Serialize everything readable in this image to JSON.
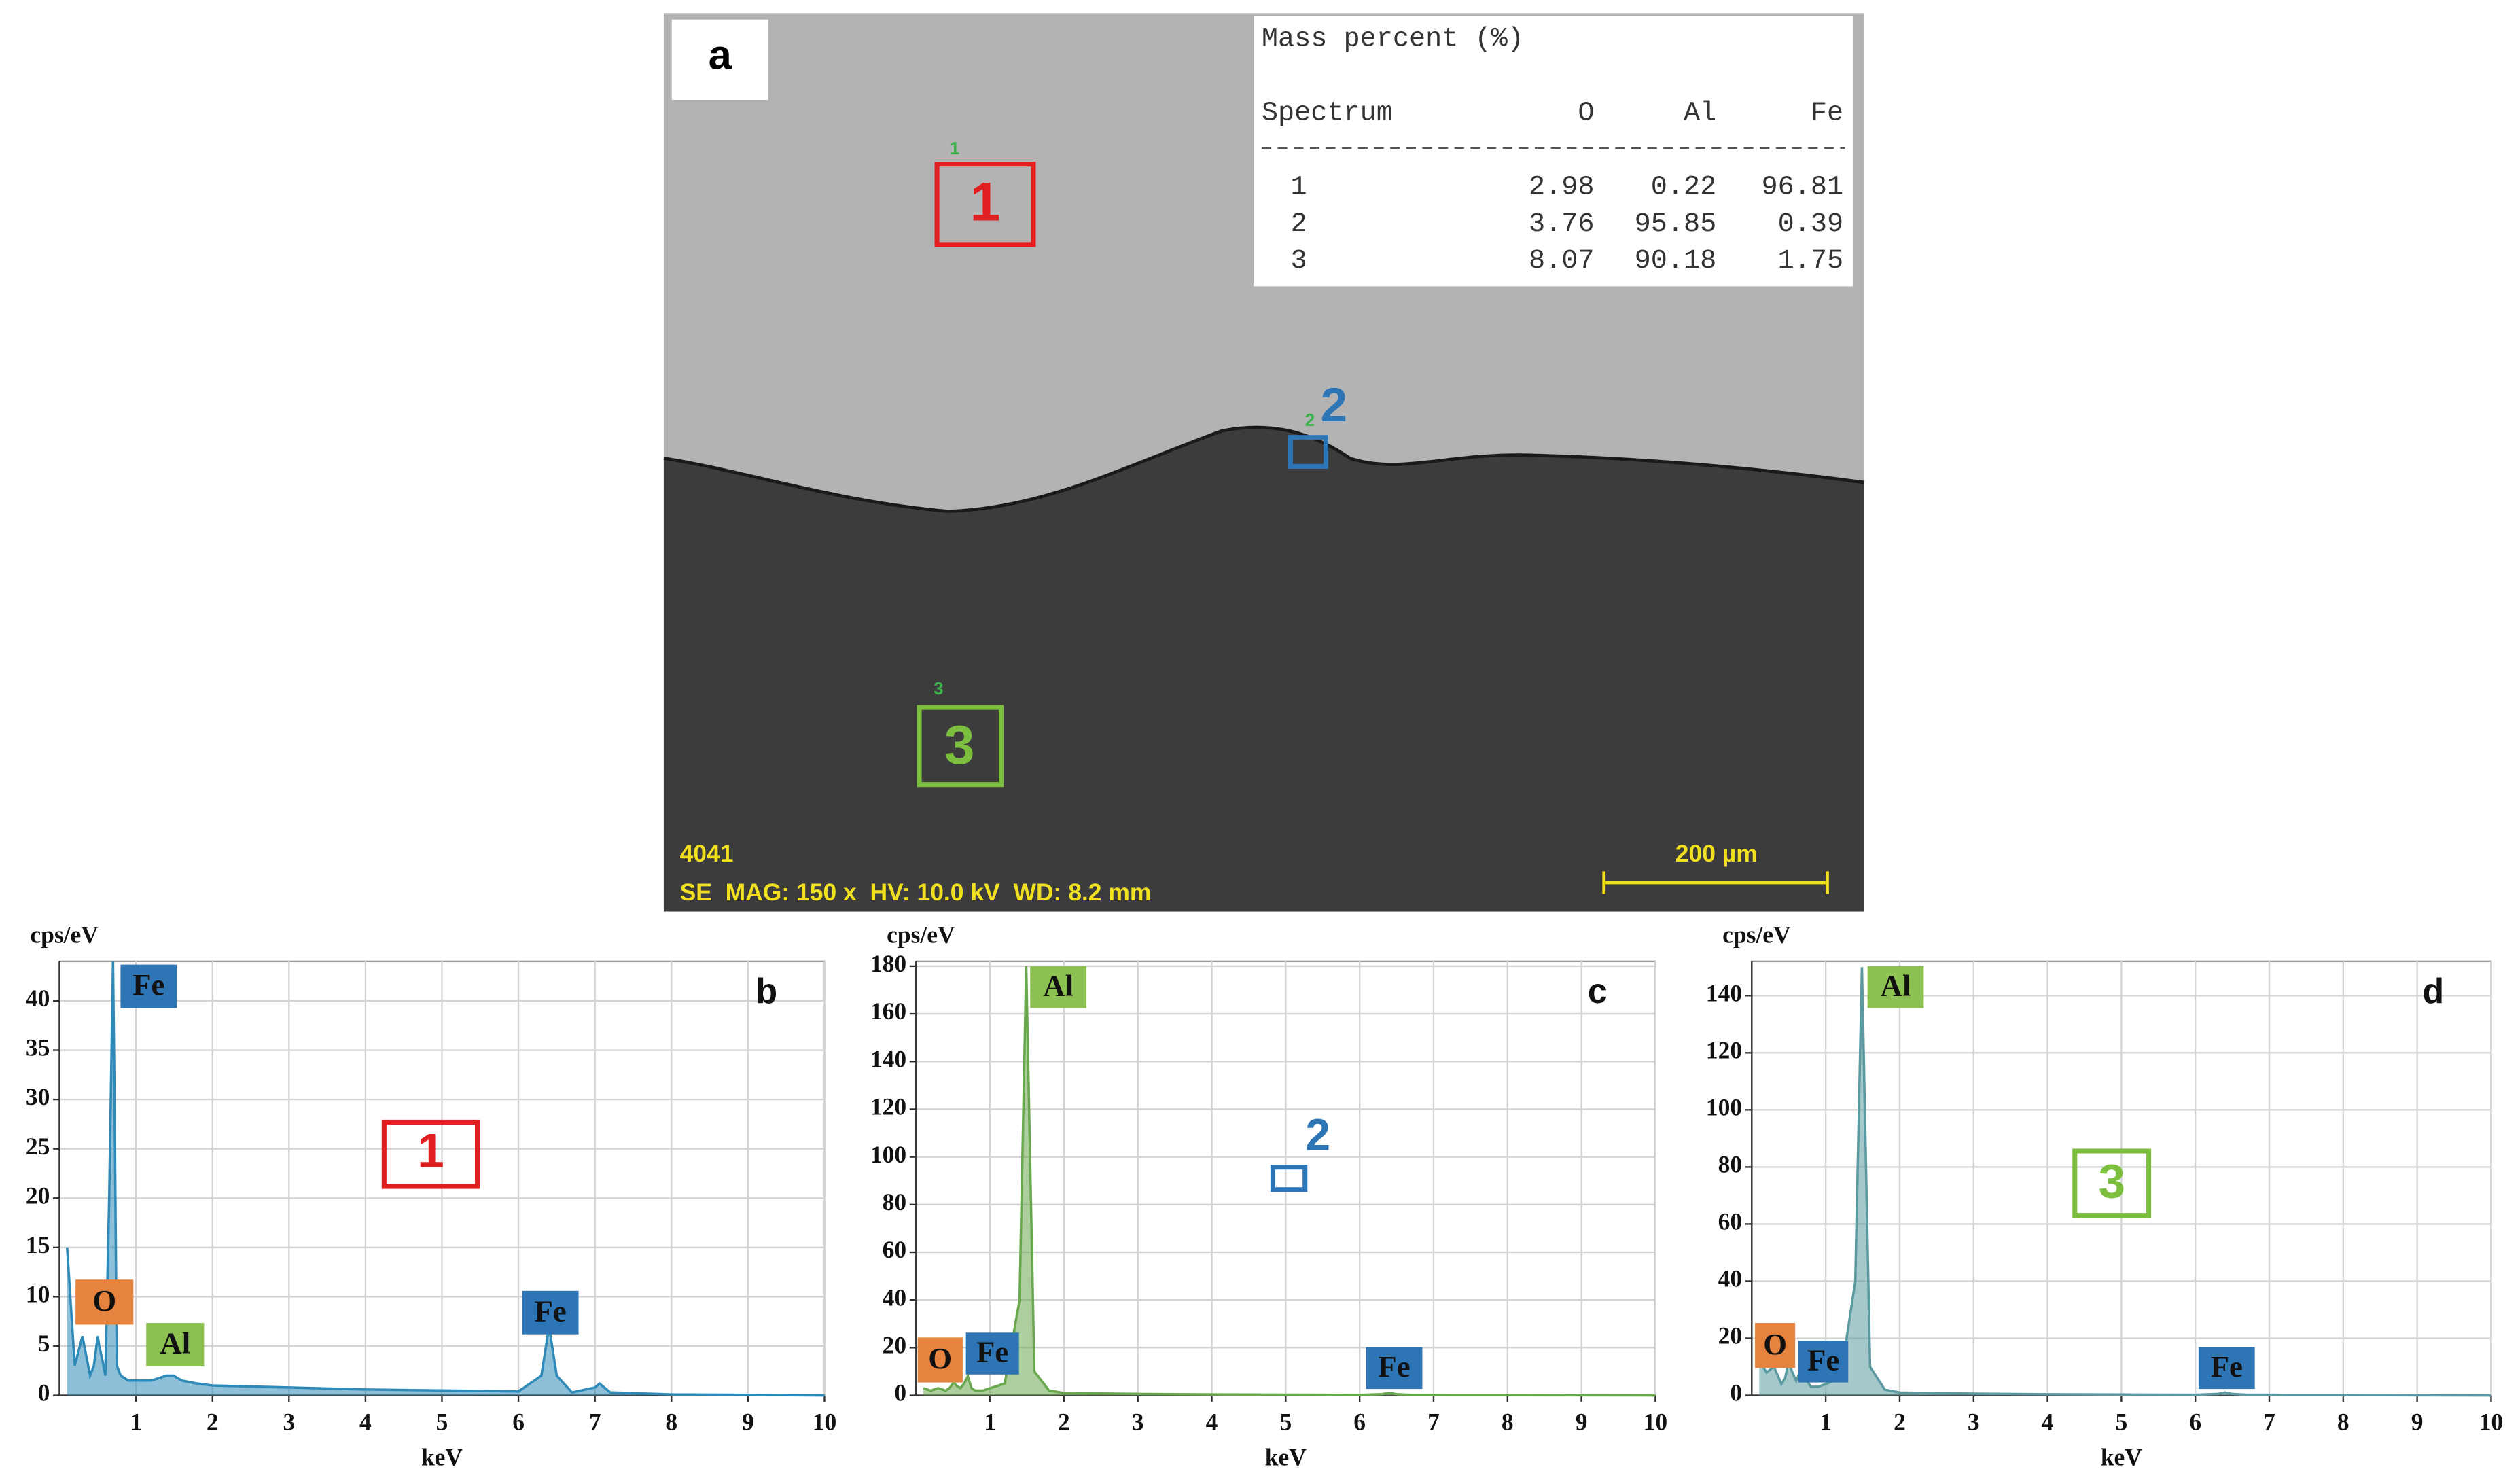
{
  "sem_image": {
    "panel_label": "a",
    "table": {
      "title": "Mass percent (%)",
      "header": [
        "Spectrum",
        "O",
        "Al",
        "Fe"
      ],
      "rows": [
        [
          "1",
          2.98,
          0.22,
          96.81
        ],
        [
          "2",
          3.76,
          95.85,
          0.39
        ],
        [
          "3",
          8.07,
          90.18,
          1.75
        ]
      ]
    },
    "regions": [
      {
        "label": "1",
        "color": "#e02020"
      },
      {
        "label": "2",
        "color": "#2e75b6"
      },
      {
        "label": "3",
        "color": "#7cbf3f"
      }
    ],
    "sample": "4041",
    "info": "SE  MAG: 150 x  HV: 10.0 kV  WD: 8.2 mm",
    "scale_bar": "200 µm"
  },
  "chart_data": [
    {
      "type": "area",
      "panel_label": "b",
      "ylabel": "cps/eV",
      "xlabel": "keV",
      "color": "#2f8ab8",
      "x": [
        0.1,
        0.2,
        0.3,
        0.4,
        0.45,
        0.5,
        0.52,
        0.55,
        0.6,
        0.65,
        0.7,
        0.72,
        0.75,
        0.8,
        0.9,
        1.0,
        1.2,
        1.4,
        1.49,
        1.6,
        1.8,
        2,
        3,
        4,
        5,
        6,
        6.3,
        6.4,
        6.5,
        6.7,
        7.0,
        7.06,
        7.2,
        8,
        9,
        10
      ],
      "values": [
        15,
        3,
        6,
        2,
        3,
        6,
        5,
        4,
        2,
        20,
        44,
        30,
        3,
        2,
        1.5,
        1.5,
        1.5,
        2,
        2,
        1.5,
        1.2,
        1,
        0.8,
        0.6,
        0.5,
        0.4,
        2,
        7,
        2,
        0.3,
        0.8,
        1.2,
        0.3,
        0.1,
        0.05,
        0
      ],
      "xlim": [
        0,
        10
      ],
      "ylim": [
        0,
        44
      ],
      "xticks": [
        1,
        2,
        3,
        4,
        5,
        6,
        7,
        8,
        9,
        10
      ],
      "yticks": [
        0,
        5,
        10,
        15,
        20,
        25,
        30,
        35,
        40
      ],
      "grid": true,
      "annotations": [
        {
          "text": "Fe",
          "color": "#2e75b6"
        },
        {
          "text": "O",
          "color": "#e6843f"
        },
        {
          "text": "Al",
          "color": "#8cc152"
        },
        {
          "text": "Fe",
          "color": "#2e75b6"
        }
      ],
      "region_label": "1",
      "region_color": "#e02020"
    },
    {
      "type": "area",
      "panel_label": "c",
      "ylabel": "cps/eV",
      "xlabel": "keV",
      "color": "#6aa84f",
      "x": [
        0.1,
        0.2,
        0.3,
        0.4,
        0.45,
        0.5,
        0.52,
        0.55,
        0.6,
        0.65,
        0.7,
        0.72,
        0.75,
        0.8,
        0.9,
        1.0,
        1.2,
        1.4,
        1.49,
        1.6,
        1.8,
        2,
        3,
        4,
        5,
        6,
        6.3,
        6.4,
        6.5,
        6.7,
        7.0,
        7.06,
        7.2,
        8,
        9,
        10
      ],
      "values": [
        3,
        2,
        3,
        2,
        3,
        5,
        5,
        4,
        3,
        5,
        8,
        6,
        3,
        2,
        2,
        3,
        5,
        40,
        180,
        10,
        2,
        1,
        0.6,
        0.4,
        0.3,
        0.2,
        0.5,
        1,
        0.5,
        0.2,
        0.2,
        0.2,
        0.1,
        0.1,
        0.05,
        0
      ],
      "xlim": [
        0,
        10
      ],
      "ylim": [
        0,
        182
      ],
      "xticks": [
        1,
        2,
        3,
        4,
        5,
        6,
        7,
        8,
        9,
        10
      ],
      "yticks": [
        0,
        20,
        40,
        60,
        80,
        100,
        120,
        140,
        160,
        180
      ],
      "grid": true,
      "annotations": [
        {
          "text": "Al",
          "color": "#8cc152"
        },
        {
          "text": "O",
          "color": "#e6843f"
        },
        {
          "text": "Fe",
          "color": "#2e75b6"
        },
        {
          "text": "Fe",
          "color": "#2e75b6"
        }
      ],
      "region_label": "2",
      "region_color": "#2e75b6"
    },
    {
      "type": "area",
      "panel_label": "d",
      "ylabel": "cps/eV",
      "xlabel": "keV",
      "color": "#5b9aa0",
      "x": [
        0.1,
        0.2,
        0.3,
        0.4,
        0.45,
        0.5,
        0.52,
        0.55,
        0.6,
        0.65,
        0.7,
        0.72,
        0.75,
        0.8,
        0.9,
        1.0,
        1.2,
        1.4,
        1.49,
        1.6,
        1.8,
        2,
        3,
        4,
        5,
        6,
        6.3,
        6.4,
        6.5,
        6.7,
        7.0,
        7.06,
        7.2,
        8,
        9,
        10
      ],
      "values": [
        12,
        8,
        10,
        4,
        6,
        12,
        10,
        8,
        5,
        8,
        10,
        8,
        5,
        3,
        3,
        4,
        6,
        40,
        150,
        10,
        2,
        1,
        0.6,
        0.4,
        0.3,
        0.2,
        0.5,
        1,
        0.5,
        0.2,
        0.2,
        0.2,
        0.1,
        0.1,
        0.05,
        0
      ],
      "xlim": [
        0,
        10
      ],
      "ylim": [
        0,
        152
      ],
      "xticks": [
        1,
        2,
        3,
        4,
        5,
        6,
        7,
        8,
        9,
        10
      ],
      "yticks": [
        0,
        20,
        40,
        60,
        80,
        100,
        120,
        140
      ],
      "grid": true,
      "annotations": [
        {
          "text": "Al",
          "color": "#8cc152"
        },
        {
          "text": "O",
          "color": "#e6843f"
        },
        {
          "text": "Fe",
          "color": "#2e75b6"
        },
        {
          "text": "Fe",
          "color": "#2e75b6"
        }
      ],
      "region_label": "3",
      "region_color": "#7cbf3f"
    }
  ]
}
